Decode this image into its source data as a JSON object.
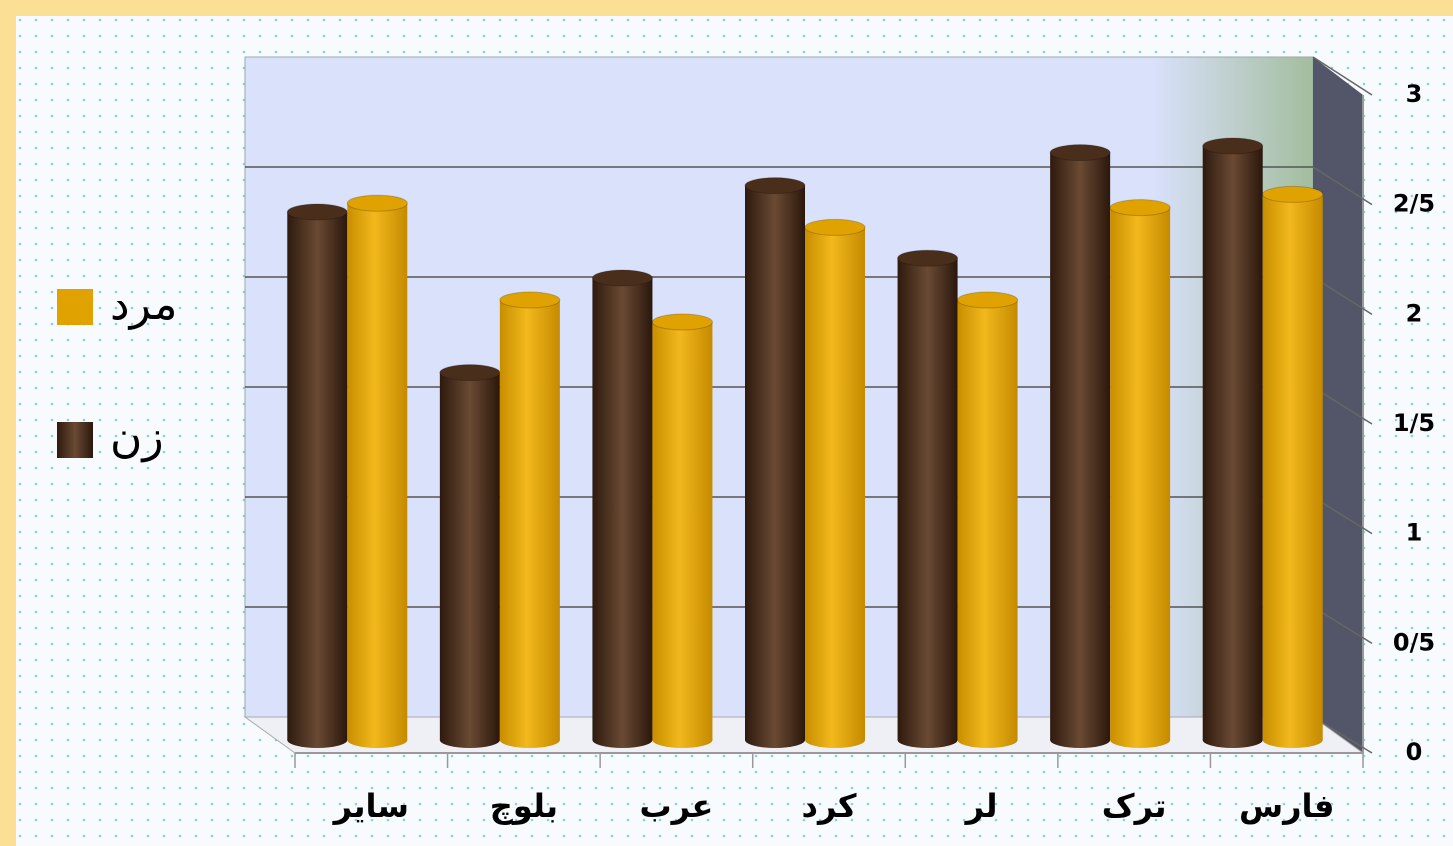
{
  "chart_data": {
    "type": "bar3d",
    "categories": [
      "فارس",
      "ترک",
      "لر",
      "کرد",
      "عرب",
      "بلوچ",
      "سایر"
    ],
    "series": [
      {
        "name": "زن",
        "color": "#4a2e1c",
        "values": [
          2.7,
          2.67,
          2.19,
          2.52,
          2.1,
          1.67,
          2.4
        ]
      },
      {
        "name": "مرد",
        "color": "#e0a200",
        "values": [
          2.48,
          2.42,
          2.0,
          2.33,
          1.9,
          2.0,
          2.44
        ]
      }
    ],
    "ylim": [
      0,
      3
    ],
    "yticks": [
      0,
      {
        "value": 0.5,
        "label": "0/5"
      },
      1,
      {
        "value": 1.5,
        "label": "1/5"
      },
      2,
      {
        "value": 2.5,
        "label": "2/5"
      },
      3
    ],
    "grid": true,
    "legend": "left"
  }
}
